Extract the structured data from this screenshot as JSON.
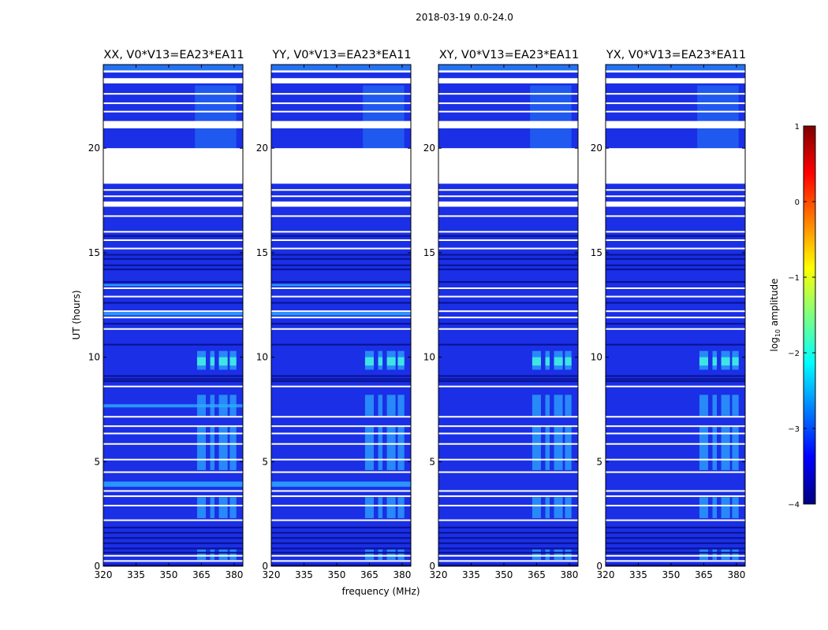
{
  "chart_data": {
    "type": "heatmap",
    "suptitle": "2018-03-19 0.0-24.0",
    "panels": [
      {
        "title": "XX, V0*V13=EA23*EA11"
      },
      {
        "title": "YY, V0*V13=EA23*EA11"
      },
      {
        "title": "XY, V0*V13=EA23*EA11"
      },
      {
        "title": "YX, V0*V13=EA23*EA11"
      }
    ],
    "xlabel": "frequency (MHz)",
    "ylabel": "UT (hours)",
    "xlim": [
      320,
      384
    ],
    "ylim": [
      0,
      24
    ],
    "xticks": [
      320,
      335,
      350,
      365,
      380
    ],
    "yticks": [
      0,
      5,
      10,
      15,
      20
    ],
    "colorbar": {
      "label": "log10 amplitude",
      "label_base": "log",
      "label_sub": "10",
      "label_rest": " amplitude",
      "range": [
        -4,
        1
      ],
      "ticks": [
        {
          "value": 1,
          "label": "1"
        },
        {
          "value": 0,
          "label": "0"
        },
        {
          "value": -1,
          "label": "−1"
        },
        {
          "value": -2,
          "label": "−2"
        },
        {
          "value": -3,
          "label": "−3"
        },
        {
          "value": -4,
          "label": "−4"
        }
      ],
      "colors": [
        "#00007f",
        "#0000ff",
        "#007fff",
        "#00ffff",
        "#7fff7f",
        "#ffff00",
        "#ff7f00",
        "#ff0000",
        "#7f0000"
      ]
    },
    "data_colors": {
      "base": "#1a2fe6",
      "dark": "#0a1290",
      "bright": "#2ea8ff",
      "hot": "#3ff0e0",
      "flag": "#ffffff",
      "frame": "#000000"
    },
    "flagged_ut_ranges": [
      [
        17.2,
        17.45
      ],
      [
        18.3,
        20.0
      ],
      [
        20.95,
        21.3
      ],
      [
        23.1,
        23.35
      ],
      [
        23.62,
        23.72
      ]
    ],
    "flag_lines_ut": [
      0.25,
      0.5,
      2.2,
      2.9,
      3.35,
      3.6,
      4.5,
      5.1,
      5.85,
      6.35,
      6.7,
      7.15,
      8.6,
      11.35,
      11.9,
      12.2,
      12.9,
      13.3,
      15.2,
      15.6,
      16.0,
      16.75,
      17.7,
      18.0,
      21.75,
      22.15,
      22.6
    ],
    "dark_lines_ut": [
      0.05,
      0.65,
      0.85,
      1.1,
      1.35,
      1.6,
      1.85,
      8.85,
      8.95,
      9.1,
      10.6,
      11.6,
      12.6,
      13.6,
      14.2,
      14.4,
      14.7,
      14.9,
      15.8
    ],
    "rfi_freq_bands_mhz": [
      [
        363,
        367
      ],
      [
        369,
        371
      ],
      [
        373,
        377
      ],
      [
        378,
        381
      ]
    ],
    "rfi_ut_ranges": [
      [
        0.3,
        0.8
      ],
      [
        2.3,
        3.3
      ],
      [
        4.6,
        6.7
      ],
      [
        7.2,
        8.2
      ],
      [
        9.4,
        10.3
      ]
    ],
    "persistent_bright_ut_ranges": [
      {
        "panel": 0,
        "range": [
          3.8,
          4.05
        ]
      },
      {
        "panel": 1,
        "range": [
          3.8,
          4.05
        ]
      },
      {
        "panel": 0,
        "range": [
          7.6,
          7.75
        ]
      },
      {
        "panel": 0,
        "range": [
          12.0,
          12.15
        ]
      },
      {
        "panel": 1,
        "range": [
          12.0,
          12.15
        ]
      },
      {
        "panel": 0,
        "range": [
          13.4,
          13.5
        ]
      },
      {
        "panel": 1,
        "range": [
          13.4,
          13.5
        ]
      }
    ]
  }
}
